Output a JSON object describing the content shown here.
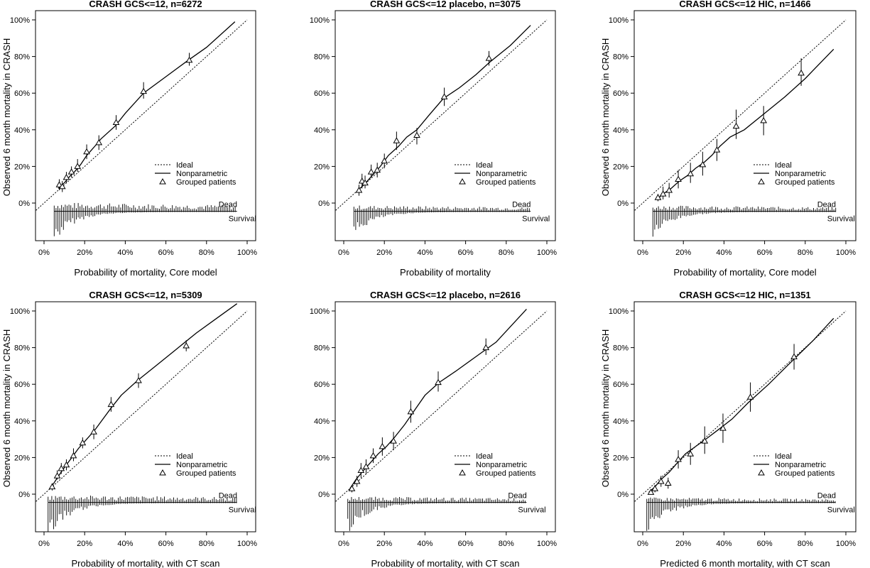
{
  "figure": {
    "colors": {
      "ink": "#000000",
      "background": "#ffffff"
    }
  },
  "chart_data": [
    {
      "type": "scatter",
      "title": "CRASH GCS<=12, n=6272",
      "xlabel": "Probability of mortality, Core model",
      "ylabel": "Observed 6 month mortality in CRASH",
      "xlim": [
        0,
        100
      ],
      "ylim": [
        -20,
        100
      ],
      "x_ticks": [
        "0%",
        "20%",
        "40%",
        "60%",
        "80%",
        "100%"
      ],
      "y_ticks": [
        "0%",
        "20%",
        "40%",
        "60%",
        "80%",
        "100%"
      ],
      "legend": [
        "Ideal",
        "Nonparametric",
        "Grouped patients"
      ],
      "legend_position": "right",
      "spike_labels": {
        "dead": "Dead",
        "survival": "Survival"
      },
      "series": [
        {
          "name": "Ideal",
          "x": [
            -5,
            100
          ],
          "y": [
            -5,
            100
          ]
        },
        {
          "name": "Nonparametric",
          "x": [
            7,
            10,
            13,
            15,
            18,
            21,
            25,
            28,
            35,
            40,
            49,
            60,
            71,
            80,
            94
          ],
          "y": [
            8,
            11,
            15,
            17,
            21,
            26,
            31,
            35,
            42,
            49,
            60,
            69,
            78,
            85,
            99
          ]
        },
        {
          "name": "Grouped patients",
          "x": [
            7.5,
            9,
            11,
            13.5,
            16.5,
            21,
            27,
            35.5,
            49,
            71.5
          ],
          "y": [
            10,
            9,
            14,
            17,
            20,
            28,
            33,
            44,
            61,
            78
          ],
          "err_low": [
            7,
            6,
            11,
            14,
            17,
            24,
            29,
            40,
            57,
            75
          ],
          "err_high": [
            13,
            12,
            17,
            20,
            24,
            32,
            37,
            48,
            66,
            82
          ]
        }
      ],
      "spikes": {
        "x_range": [
          5,
          95
        ],
        "dead_max": 1.8,
        "survival_max": 12
      }
    },
    {
      "type": "scatter",
      "title": "CRASH GCS<=12 placebo, n=3075",
      "xlabel": "Probability of mortality",
      "ylabel": "",
      "xlim": [
        0,
        100
      ],
      "ylim": [
        -20,
        100
      ],
      "x_ticks": [
        "0%",
        "20%",
        "40%",
        "60%",
        "80%",
        "100%"
      ],
      "y_ticks": [
        "0%",
        "20%",
        "40%",
        "60%",
        "80%",
        "100%"
      ],
      "legend": [
        "Ideal",
        "Nonparametric",
        "Grouped patients"
      ],
      "legend_position": "right",
      "spike_labels": {
        "dead": "Dead",
        "survival": "Survival"
      },
      "series": [
        {
          "name": "Ideal",
          "x": [
            -5,
            100
          ],
          "y": [
            -5,
            100
          ]
        },
        {
          "name": "Nonparametric",
          "x": [
            7,
            10,
            14,
            18,
            22,
            27,
            31,
            36,
            42,
            49,
            57,
            65,
            72,
            82,
            92
          ],
          "y": [
            7,
            10,
            15,
            20,
            26,
            31,
            36,
            40,
            48,
            57,
            63,
            70,
            77,
            86,
            97
          ]
        },
        {
          "name": "Grouped patients",
          "x": [
            7.5,
            9,
            10.5,
            13.5,
            16.5,
            20,
            26,
            36,
            49.5,
            71.5
          ],
          "y": [
            7,
            12,
            11,
            17,
            18,
            23,
            34,
            37,
            58,
            79
          ],
          "err_low": [
            4,
            8,
            8,
            14,
            14,
            19,
            29,
            32,
            53,
            75
          ],
          "err_high": [
            10,
            16,
            15,
            21,
            22,
            27,
            39,
            41,
            63,
            83
          ]
        }
      ],
      "spikes": {
        "x_range": [
          5,
          92
        ],
        "dead_max": 1.2,
        "survival_max": 10
      }
    },
    {
      "type": "scatter",
      "title": "CRASH GCS<=12 HIC, n=1466",
      "xlabel": "Probability of mortality, Core model",
      "ylabel": "Observed 6 month mortality in CRASH",
      "xlim": [
        0,
        100
      ],
      "ylim": [
        -20,
        100
      ],
      "x_ticks": [
        "0%",
        "20%",
        "40%",
        "60%",
        "80%",
        "100%"
      ],
      "y_ticks": [
        "0%",
        "20%",
        "40%",
        "60%",
        "80%",
        "100%"
      ],
      "legend": [
        "Ideal",
        "Nonparametric",
        "Grouped patients"
      ],
      "legend_position": "right",
      "spike_labels": {
        "dead": "Dead",
        "survival": "Survival"
      },
      "series": [
        {
          "name": "Ideal",
          "x": [
            -5,
            100
          ],
          "y": [
            -5,
            100
          ]
        },
        {
          "name": "Nonparametric",
          "x": [
            7,
            10,
            14,
            18,
            22,
            26,
            30,
            34,
            38,
            43,
            50,
            60,
            70,
            80,
            94
          ],
          "y": [
            2,
            5,
            8,
            12,
            15,
            19,
            22,
            26,
            31,
            36,
            40,
            49,
            58,
            68,
            84
          ]
        },
        {
          "name": "Grouped patients",
          "x": [
            7.5,
            10,
            13,
            17.5,
            23.5,
            29.5,
            36.5,
            46,
            59.5,
            78
          ],
          "y": [
            3,
            5,
            7,
            13,
            16,
            21,
            29,
            42,
            45,
            71
          ],
          "err_low": [
            1,
            2,
            3,
            8,
            11,
            15,
            23,
            35,
            37,
            64
          ],
          "err_high": [
            5,
            9,
            11,
            18,
            22,
            28,
            35,
            51,
            53,
            79
          ]
        }
      ],
      "spikes": {
        "x_range": [
          5,
          95
        ],
        "dead_max": 1.2,
        "survival_max": 10
      }
    },
    {
      "type": "scatter",
      "title": "CRASH GCS<=12, n=5309",
      "xlabel": "Probability of mortality, with CT scan",
      "ylabel": "Observed 6 month mortality in CRASH",
      "xlim": [
        0,
        100
      ],
      "ylim": [
        -20,
        100
      ],
      "x_ticks": [
        "0%",
        "20%",
        "40%",
        "60%",
        "80%",
        "100%"
      ],
      "y_ticks": [
        "0%",
        "20%",
        "40%",
        "60%",
        "80%",
        "100%"
      ],
      "legend": [
        "Ideal",
        "Nonparametric",
        "Grouped patients"
      ],
      "legend_position": "right",
      "spike_labels": {
        "dead": "Dead",
        "survival": "Survival"
      },
      "series": [
        {
          "name": "Ideal",
          "x": [
            -5,
            100
          ],
          "y": [
            -5,
            100
          ]
        },
        {
          "name": "Nonparametric",
          "x": [
            3,
            6,
            9,
            13,
            17,
            21,
            25,
            29,
            33,
            38,
            46,
            55,
            65,
            75,
            85,
            95
          ],
          "y": [
            3,
            8,
            13,
            19,
            25,
            30,
            35,
            41,
            47,
            54,
            62,
            70,
            79,
            88,
            96,
            104
          ]
        },
        {
          "name": "Grouped patients",
          "x": [
            4,
            6.5,
            8.5,
            11,
            14.5,
            19,
            24.5,
            33,
            46.5,
            70
          ],
          "y": [
            4,
            10,
            14,
            16,
            21,
            28,
            34,
            49,
            62,
            81
          ],
          "err_low": [
            2,
            8,
            11,
            13,
            18,
            25,
            30,
            45,
            58,
            78
          ],
          "err_high": [
            6,
            13,
            17,
            19,
            25,
            31,
            38,
            53,
            66,
            84
          ]
        }
      ],
      "spikes": {
        "x_range": [
          2,
          95
        ],
        "dead_max": 1.5,
        "survival_max": 14
      }
    },
    {
      "type": "scatter",
      "title": "CRASH GCS<=12 placebo, n=2616",
      "xlabel": "Probability of mortality, with CT scan",
      "ylabel": "",
      "xlim": [
        0,
        100
      ],
      "ylim": [
        -20,
        100
      ],
      "x_ticks": [
        "0%",
        "20%",
        "40%",
        "60%",
        "80%",
        "100%"
      ],
      "y_ticks": [
        "0%",
        "20%",
        "40%",
        "60%",
        "80%",
        "100%"
      ],
      "legend": [
        "Ideal",
        "Nonparametric",
        "Grouped patients"
      ],
      "legend_position": "right",
      "spike_labels": {
        "dead": "Dead",
        "survival": "Survival"
      },
      "series": [
        {
          "name": "Ideal",
          "x": [
            -5,
            100
          ],
          "y": [
            -5,
            100
          ]
        },
        {
          "name": "Nonparametric",
          "x": [
            3,
            6,
            9,
            13,
            17,
            21,
            25,
            30,
            35,
            40,
            47,
            55,
            65,
            75,
            90
          ],
          "y": [
            3,
            8,
            12,
            17,
            22,
            26,
            31,
            38,
            46,
            54,
            61,
            67,
            75,
            83,
            101
          ]
        },
        {
          "name": "Grouped patients",
          "x": [
            4,
            6.5,
            8.5,
            11,
            14.5,
            19,
            24.5,
            33,
            46.5,
            70
          ],
          "y": [
            3,
            7,
            13,
            15,
            21,
            26,
            29,
            45,
            61,
            80
          ],
          "err_low": [
            1,
            4,
            9,
            11,
            17,
            21,
            24,
            39,
            56,
            76
          ],
          "err_high": [
            5,
            10,
            17,
            19,
            25,
            31,
            34,
            51,
            67,
            85
          ]
        }
      ],
      "spikes": {
        "x_range": [
          2,
          90
        ],
        "dead_max": 1.2,
        "survival_max": 12
      }
    },
    {
      "type": "scatter",
      "title": "CRASH GCS<=12 HIC, n=1351",
      "xlabel": "Predicted 6 month mortality, with CT scan",
      "ylabel": "Observed 6 month mortality in CRASH",
      "xlim": [
        0,
        100
      ],
      "ylim": [
        -20,
        100
      ],
      "x_ticks": [
        "0%",
        "20%",
        "40%",
        "60%",
        "80%",
        "100%"
      ],
      "y_ticks": [
        "0%",
        "20%",
        "40%",
        "60%",
        "80%",
        "100%"
      ],
      "legend": [
        "Ideal",
        "Nonparametric",
        "Grouped patients"
      ],
      "legend_position": "right",
      "spike_labels": {
        "dead": "Dead",
        "survival": "Survival"
      },
      "series": [
        {
          "name": "Ideal",
          "x": [
            -5,
            100
          ],
          "y": [
            -5,
            100
          ]
        },
        {
          "name": "Nonparametric",
          "x": [
            3,
            6,
            9,
            13,
            17,
            21,
            26,
            31,
            37,
            44,
            52,
            62,
            72,
            84,
            94
          ],
          "y": [
            1,
            4,
            8,
            12,
            17,
            22,
            26,
            30,
            35,
            41,
            50,
            60,
            71,
            84,
            96
          ]
        },
        {
          "name": "Grouped patients",
          "x": [
            4,
            6,
            9,
            12.5,
            17.5,
            23.5,
            30.5,
            39.5,
            53,
            74.5
          ],
          "y": [
            1,
            3,
            7,
            6,
            19,
            22,
            29,
            36,
            53,
            75
          ],
          "err_low": [
            0,
            1,
            4,
            3,
            14,
            16,
            22,
            28,
            45,
            68
          ],
          "err_high": [
            2,
            5,
            10,
            9,
            24,
            28,
            37,
            44,
            61,
            82
          ]
        }
      ],
      "spikes": {
        "x_range": [
          2,
          95
        ],
        "dead_max": 1.0,
        "survival_max": 12
      }
    }
  ]
}
